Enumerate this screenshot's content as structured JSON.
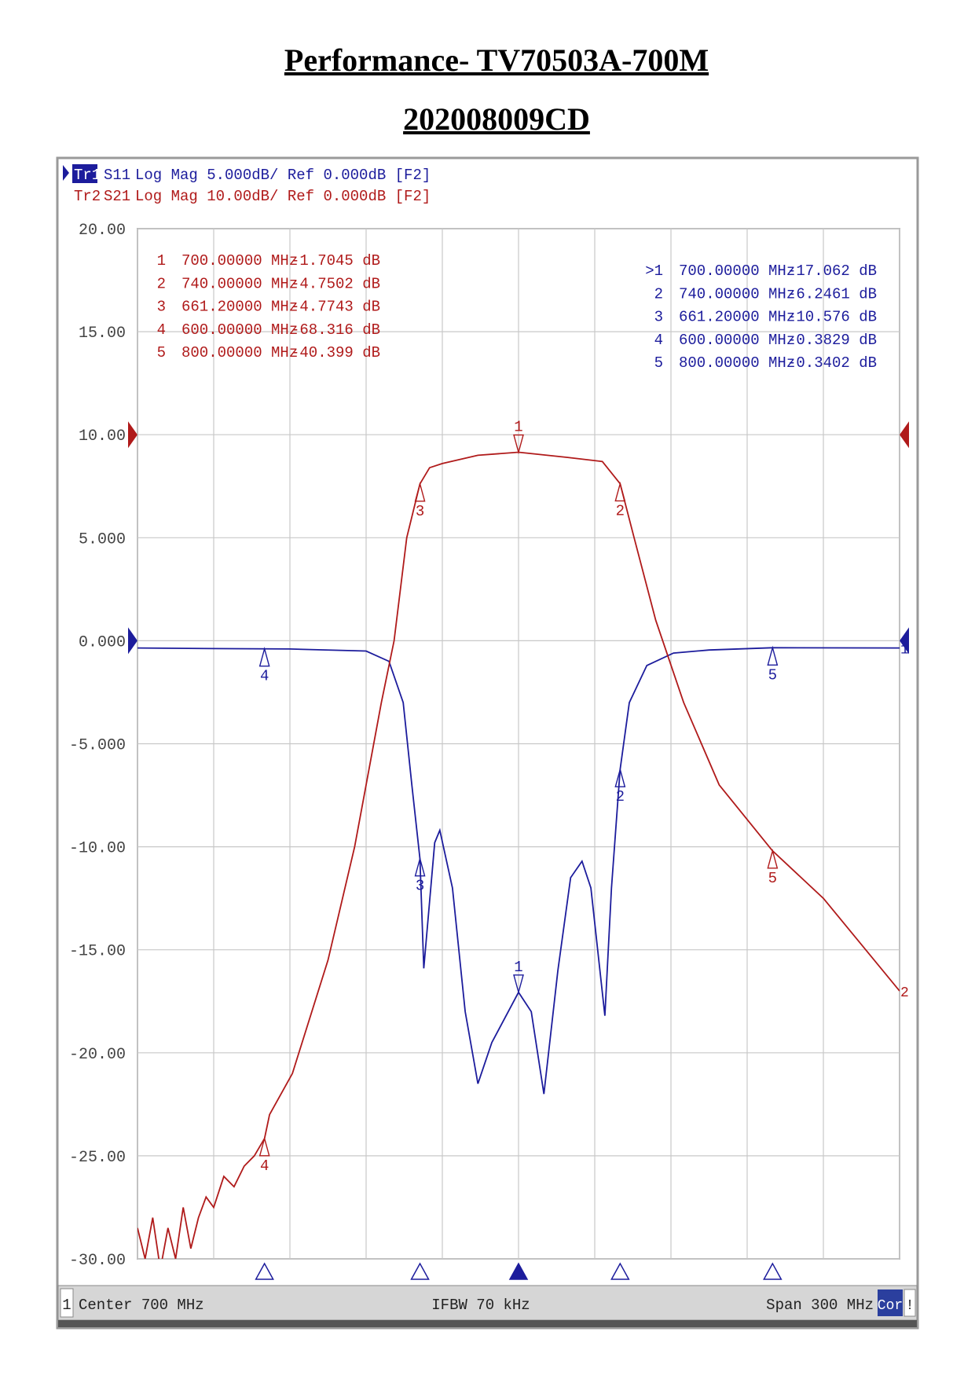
{
  "header": {
    "title": "Performance- TV70503A-700M",
    "subtitle": "202008009CD"
  },
  "chart_data": {
    "type": "line",
    "xlim": [
      550,
      850
    ],
    "xticks": [
      550,
      580,
      610,
      640,
      670,
      700,
      730,
      760,
      790,
      820,
      850
    ],
    "ylim": [
      -30,
      20
    ],
    "yticks": [
      {
        "value": 20,
        "label": "20.00"
      },
      {
        "value": 15,
        "label": "15.00"
      },
      {
        "value": 10,
        "label": "10.00"
      },
      {
        "value": 5,
        "label": "5.000"
      },
      {
        "value": 0,
        "label": "0.000"
      },
      {
        "value": -5,
        "label": "-5.000"
      },
      {
        "value": -10,
        "label": "-10.00"
      },
      {
        "value": -15,
        "label": "-15.00"
      },
      {
        "value": -20,
        "label": "-20.00"
      },
      {
        "value": -25,
        "label": "-25.00"
      },
      {
        "value": -30,
        "label": "-30.00"
      }
    ],
    "y2lim": [
      -80,
      20
    ],
    "grid": true,
    "series": [
      {
        "trace": "Tr1",
        "name": "S11",
        "settings": "Log Mag 5.000dB/ Ref 0.000dB [F2]",
        "color": "#1c1c9c",
        "ref": 0,
        "end_label": "1",
        "x": [
          550,
          580,
          610,
          640,
          649,
          654.6,
          658,
          661.2,
          662.7,
          667,
          669,
          674,
          679,
          684,
          689.5,
          700,
          705,
          710,
          715.5,
          720.5,
          725,
          728.5,
          734,
          736.6,
          740,
          743.6,
          750.5,
          761,
          775,
          800,
          850
        ],
        "values": [
          -0.35,
          -0.38,
          -0.4,
          -0.5,
          -1,
          -3,
          -7,
          -10.576,
          -15.9,
          -9.8,
          -9.2,
          -12,
          -18,
          -21.5,
          -19.5,
          -17.062,
          -18,
          -22,
          -16,
          -11.5,
          -10.7,
          -12,
          -18.2,
          -12,
          -6.2461,
          -3,
          -1.2,
          -0.6,
          -0.45,
          -0.3402,
          -0.35
        ],
        "markers": [
          {
            "label": "1",
            "x": 700
          },
          {
            "label": "2",
            "x": 740
          },
          {
            "label": "3",
            "x": 661.2
          },
          {
            "label": "4",
            "x": 600
          },
          {
            "label": "5",
            "x": 800
          }
        ],
        "marker_table": [
          [
            ">1",
            "700.00000 MHz",
            "-17.062 dB"
          ],
          [
            "2",
            "740.00000 MHz",
            "-6.2461 dB"
          ],
          [
            "3",
            "661.20000 MHz",
            "-10.576 dB"
          ],
          [
            "4",
            "600.00000 MHz",
            "-0.3829 dB"
          ],
          [
            "5",
            "800.00000 MHz",
            "-0.3402 dB"
          ]
        ]
      },
      {
        "trace": "Tr2",
        "name": "S21",
        "settings": "Log Mag 10.00dB/ Ref 0.000dB [F2]",
        "color": "#b01a1a",
        "axis": "y2",
        "ref": 0,
        "end_label": "2",
        "x": [
          550,
          553,
          556,
          559,
          562,
          565,
          568,
          571,
          574,
          577,
          580,
          584,
          588,
          592,
          596,
          600,
          602,
          611,
          625,
          635.5,
          646,
          651,
          656,
          661.2,
          665,
          670,
          684,
          700,
          719,
          733,
          740,
          745.5,
          754,
          765,
          779,
          800,
          820,
          850
        ],
        "values": [
          -77,
          -80,
          -76,
          -81,
          -77,
          -80,
          -75,
          -79,
          -76,
          -74,
          -75,
          -72,
          -73,
          -71,
          -70,
          -68.316,
          -66,
          -62,
          -51,
          -40,
          -26,
          -20,
          -10,
          -4.7743,
          -3.2,
          -2.8,
          -2,
          -1.7045,
          -2.2,
          -2.6,
          -4.7502,
          -10,
          -18,
          -26,
          -34,
          -40.399,
          -45,
          -54
        ],
        "markers": [
          {
            "label": "1",
            "x": 700
          },
          {
            "label": "2",
            "x": 740
          },
          {
            "label": "3",
            "x": 661.2
          },
          {
            "label": "4",
            "x": 600
          },
          {
            "label": "5",
            "x": 800
          }
        ],
        "marker_table": [
          [
            "1",
            "700.00000 MHz",
            "-1.7045 dB"
          ],
          [
            "2",
            "740.00000 MHz",
            "-4.7502 dB"
          ],
          [
            "3",
            "661.20000 MHz",
            "-4.7743 dB"
          ],
          [
            "4",
            "600.00000 MHz",
            "-68.316 dB"
          ],
          [
            "5",
            "800.00000 MHz",
            "-40.399 dB"
          ]
        ]
      }
    ],
    "footer": {
      "channel": "1",
      "center": "Center 700 MHz",
      "ifbw": "IFBW 70 kHz",
      "span": "Span 300 MHz",
      "cor": "Cor",
      "flag": "!"
    }
  }
}
